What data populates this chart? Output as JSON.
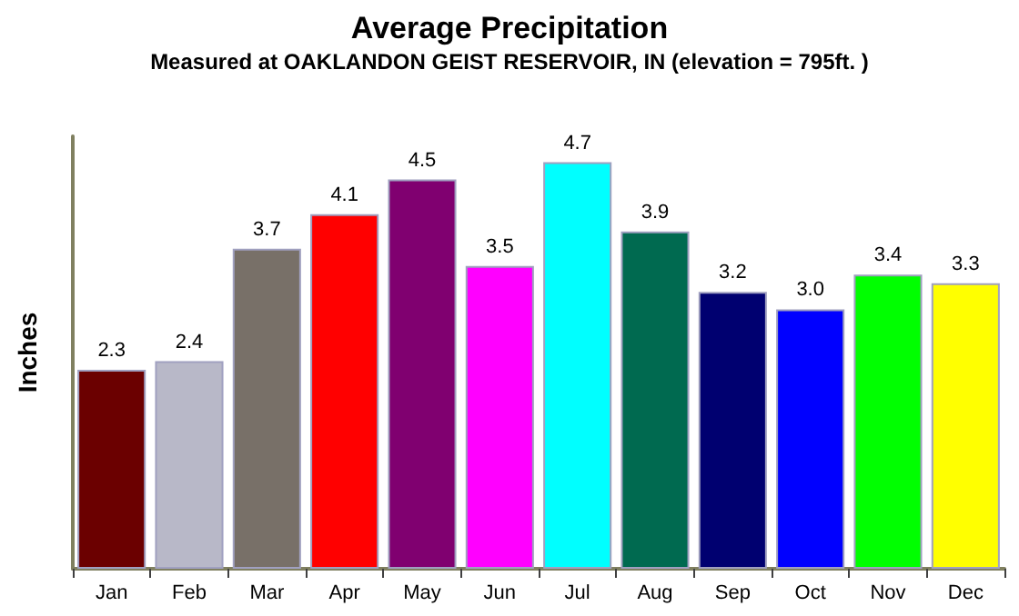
{
  "chart_data": {
    "type": "bar",
    "title": "Average Precipitation",
    "subtitle": "Measured at OAKLANDON GEIST RESERVOIR, IN (elevation = 795ft. )",
    "ylabel": "Inches",
    "categories": [
      "Jan",
      "Feb",
      "Mar",
      "Apr",
      "May",
      "Jun",
      "Jul",
      "Aug",
      "Sep",
      "Oct",
      "Nov",
      "Dec"
    ],
    "values": [
      2.3,
      2.4,
      3.7,
      4.1,
      4.5,
      3.5,
      4.7,
      3.9,
      3.2,
      3.0,
      3.4,
      3.3
    ],
    "colors": [
      "#6b0000",
      "#b8b8c8",
      "#787068",
      "#ff0000",
      "#800070",
      "#ff00ff",
      "#00ffff",
      "#006a50",
      "#000070",
      "#0000ff",
      "#00ff00",
      "#ffff00"
    ],
    "value_labels": [
      "2.3",
      "2.4",
      "3.7",
      "4.1",
      "4.5",
      "3.5",
      "4.7",
      "3.9",
      "3.2",
      "3.0",
      "3.4",
      "3.3"
    ],
    "grid": false,
    "tick_labels": "x"
  }
}
